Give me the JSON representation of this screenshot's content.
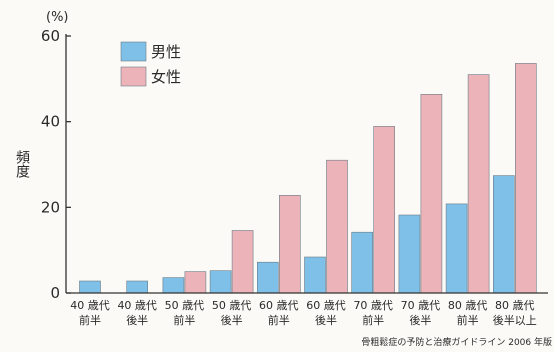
{
  "chart_data": {
    "type": "bar",
    "y_unit": "(%)",
    "ylabel": "頻度",
    "ylim": [
      0,
      60
    ],
    "yticks": [
      0,
      20,
      40,
      60
    ],
    "grid": false,
    "legend_position": "top-left",
    "categories": [
      [
        "40 歳代",
        "前半"
      ],
      [
        "40 歳代",
        "後半"
      ],
      [
        "50 歳代",
        "前半"
      ],
      [
        "50 歳代",
        "後半"
      ],
      [
        "60 歳代",
        "前半"
      ],
      [
        "60 歳代",
        "後半"
      ],
      [
        "70 歳代",
        "前半"
      ],
      [
        "70 歳代",
        "後半"
      ],
      [
        "80 歳代",
        "前半"
      ],
      [
        "80 歳代",
        "後半以上"
      ]
    ],
    "series": [
      {
        "name": "男性",
        "color": "#7fc0e8",
        "values": [
          2.8,
          2.8,
          3.6,
          5.2,
          7.2,
          8.4,
          14.2,
          18.2,
          20.8,
          27.4
        ]
      },
      {
        "name": "女性",
        "color": "#ecb4b8",
        "values": [
          null,
          null,
          5.0,
          14.6,
          22.8,
          31.0,
          38.9,
          46.4,
          51.0,
          53.6
        ]
      }
    ],
    "source": "骨粗鬆症の予防と治療ガイドライン 2006 年版"
  }
}
